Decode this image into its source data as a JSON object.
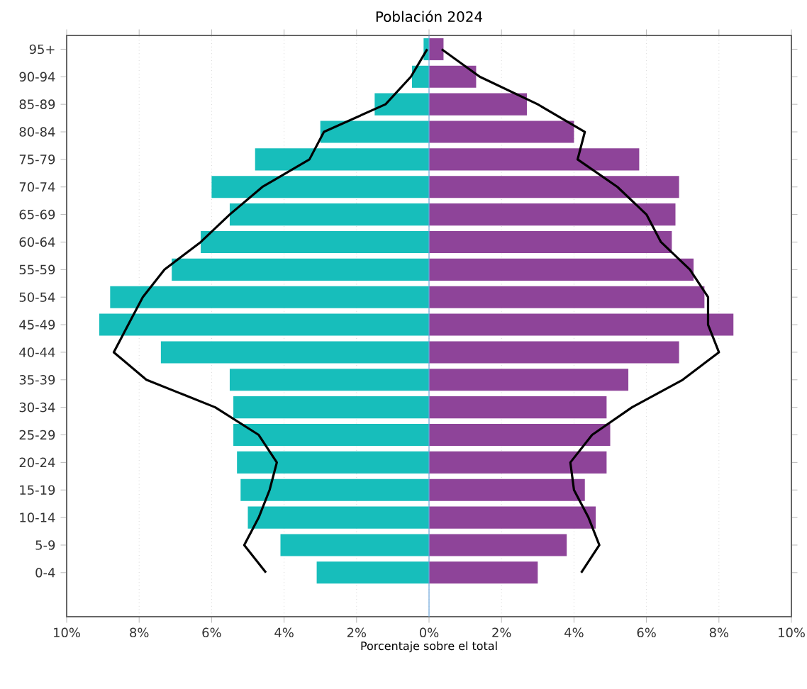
{
  "chart_data": {
    "type": "bar",
    "orientation": "horizontal",
    "title": "Población 2024",
    "xlabel": "Porcentaje sobre el total",
    "categories": [
      "95+",
      "90-94",
      "85-89",
      "80-84",
      "75-79",
      "70-74",
      "65-69",
      "60-64",
      "55-59",
      "50-54",
      "45-49",
      "40-44",
      "35-39",
      "30-34",
      "25-29",
      "20-24",
      "15-19",
      "10-14",
      "5-9",
      "0-4"
    ],
    "series": [
      {
        "color": "#17bebb",
        "values": [
          -0.15,
          -0.47,
          -1.5,
          -3.0,
          -4.8,
          -6.0,
          -5.5,
          -6.3,
          -7.1,
          -8.8,
          -9.1,
          -7.4,
          -5.5,
          -5.4,
          -5.4,
          -5.3,
          -5.2,
          -5.0,
          -4.1,
          -3.1
        ]
      },
      {
        "color": "#8e4499",
        "values": [
          0.4,
          1.3,
          2.7,
          4.0,
          5.8,
          6.9,
          6.8,
          6.7,
          7.3,
          7.6,
          8.4,
          6.9,
          5.5,
          4.9,
          5.0,
          4.9,
          4.3,
          4.6,
          3.8,
          3.0
        ]
      },
      {
        "type": "line",
        "color": "#000000",
        "values": [
          -0.05,
          -0.5,
          -1.2,
          -2.9,
          -3.3,
          -4.6,
          -5.5,
          -6.3,
          -7.3,
          -7.9,
          -8.3,
          -8.7,
          -7.8,
          -5.9,
          -4.7,
          -4.2,
          -4.4,
          -4.7,
          -5.1,
          -4.5
        ]
      },
      {
        "type": "line",
        "color": "#000000",
        "values": [
          0.35,
          1.4,
          3.0,
          4.3,
          4.1,
          5.2,
          6.0,
          6.4,
          7.2,
          7.7,
          7.7,
          8.0,
          7.0,
          5.6,
          4.5,
          3.9,
          4.0,
          4.4,
          4.7,
          4.2
        ]
      }
    ],
    "xlim": [
      -10,
      10
    ],
    "xticks": [
      {
        "value": -10,
        "label": "10%"
      },
      {
        "value": -8,
        "label": "8%"
      },
      {
        "value": -6,
        "label": "6%"
      },
      {
        "value": -4,
        "label": "4%"
      },
      {
        "value": -2,
        "label": "2%"
      },
      {
        "value": 0,
        "label": "0%"
      },
      {
        "value": 2,
        "label": "2%"
      },
      {
        "value": 4,
        "label": "4%"
      },
      {
        "value": 6,
        "label": "6%"
      },
      {
        "value": 8,
        "label": "8%"
      },
      {
        "value": 10,
        "label": "10%"
      }
    ],
    "grid": "x",
    "stacked": true,
    "ref_lines": [
      {
        "axis": "x",
        "value": 0,
        "color": "#6fa8dc"
      }
    ]
  }
}
